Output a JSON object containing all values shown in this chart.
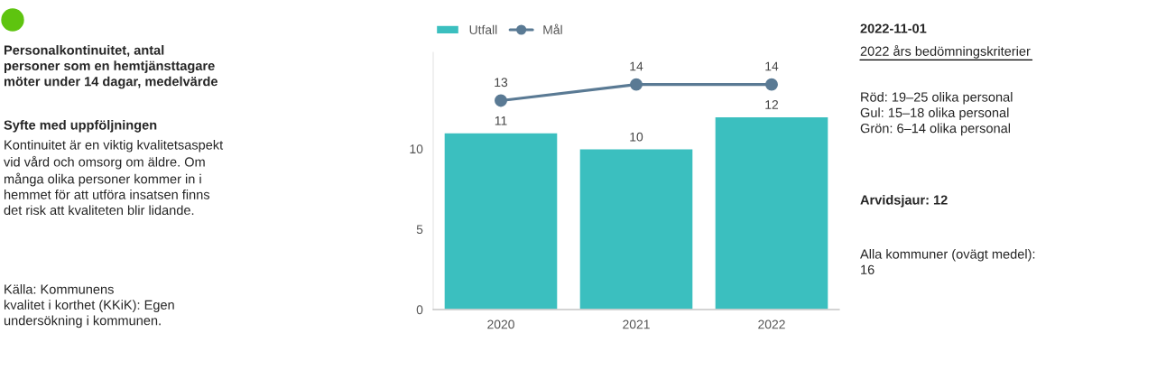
{
  "chart_data": [
    {
      "type": "other",
      "title": "Personalkontinuitet, antal\npersoner som en hemtjänsttagare\nmöter under 14 dagar, medelvärde",
      "color": "#5ec40f",
      "annotations": [
        "Syfte med uppföljningen",
        "Kontinuitet är en viktig kvalitetsaspekt\nvid vård och omsorg om äldre. Om\nmånga olika personer kommer in i\nhemmet för att utföra insatsen finns\ndet risk att kvaliteten blir lidande.",
        "Källa: Kommunens\nkvalitet i korthet (KKiK): Egen\nundersökning i kommunen."
      ]
    },
    {
      "type": "bar",
      "categories": [
        "2020",
        "2021",
        "2022"
      ],
      "series": [
        {
          "name": "Utfall",
          "type": "bar",
          "color": "#3bbfbf",
          "values": [
            11,
            10,
            12
          ]
        },
        {
          "name": "Mål",
          "type": "line",
          "color": "#5a7a94",
          "values": [
            13,
            14,
            14
          ]
        }
      ],
      "ylim": [
        0,
        16
      ],
      "yticks": [
        0,
        5,
        10
      ],
      "data_labels": true,
      "legend": "top left",
      "marker": "circle",
      "grid": false
    },
    {
      "type": "other",
      "title": "2022-11-01",
      "subtitle": "2022 års bedömningskriterier",
      "annotations": [
        "Röd: 19–25 olika personal\nGul: 15–18 olika personal\nGrön: 6–14 olika personal",
        "Arvidsjaur: 12",
        "Alla kommuner (ovägt medel):\n16"
      ]
    }
  ]
}
